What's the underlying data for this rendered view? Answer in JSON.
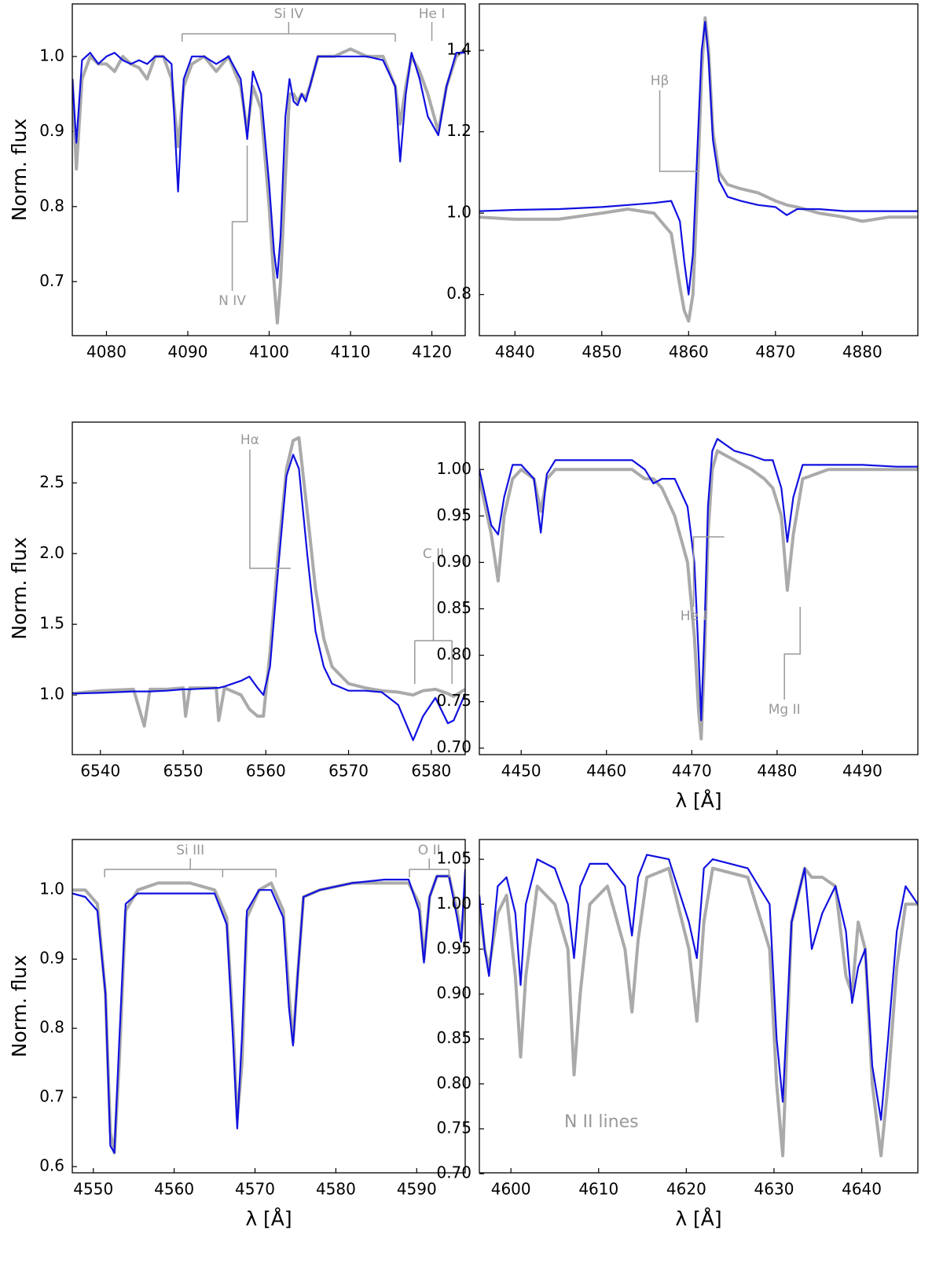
{
  "chart_data": [
    {
      "type": "line",
      "ylabel": "Norm. flux",
      "xlim": [
        4075.8,
        4124.1
      ],
      "xticks": [
        4080,
        4090,
        4100,
        4110,
        4120
      ],
      "ylim": [
        0.628,
        1.07
      ],
      "yticks": [
        0.7,
        0.8,
        0.9,
        {
          "value": 1,
          "label": "1.0"
        }
      ],
      "x": [
        4075.8,
        4076.3,
        4077,
        4078,
        4079,
        4080,
        4081,
        4082,
        4083,
        4084,
        4085,
        4086,
        4087,
        4088,
        4088.8,
        4089.5,
        4090.5,
        4092,
        4093.5,
        4095,
        4096.5,
        4097.3,
        4098,
        4099,
        4100,
        4100.6,
        4101,
        4101.4,
        4102,
        4102.5,
        4103,
        4103.5,
        4104,
        4104.5,
        4105,
        4106,
        4108,
        4110,
        4112,
        4114,
        4115.5,
        4116.1,
        4116.8,
        4117.5,
        4118.5,
        4119.5,
        4120.8,
        4121.8,
        4123,
        4124.1
      ],
      "series": [
        {
          "color": "#aaaaaa",
          "values": [
            0.97,
            0.85,
            0.97,
            1.0,
            0.99,
            0.99,
            0.98,
            1.0,
            0.99,
            0.985,
            0.97,
            1.0,
            1.0,
            0.97,
            0.88,
            0.96,
            0.99,
            1.0,
            0.98,
            1.0,
            0.96,
            0.9,
            0.96,
            0.93,
            0.8,
            0.7,
            0.645,
            0.7,
            0.84,
            0.95,
            0.95,
            0.94,
            0.95,
            0.945,
            0.96,
            1.0,
            1.0,
            1.01,
            1.0,
            1.0,
            0.96,
            0.91,
            0.96,
            1.0,
            0.98,
            0.95,
            0.9,
            0.96,
            1.0,
            1.01
          ]
        },
        {
          "color": "#1010e0",
          "values": [
            0.97,
            0.885,
            0.995,
            1.005,
            0.99,
            1.0,
            1.005,
            0.995,
            0.99,
            0.995,
            0.99,
            1.0,
            1.0,
            0.99,
            0.82,
            0.97,
            1.0,
            1.0,
            0.99,
            1.0,
            0.97,
            0.89,
            0.98,
            0.95,
            0.83,
            0.74,
            0.705,
            0.76,
            0.92,
            0.97,
            0.94,
            0.935,
            0.95,
            0.94,
            0.96,
            1.0,
            1.0,
            1.0,
            1.0,
            0.995,
            0.96,
            0.86,
            0.95,
            1.005,
            0.97,
            0.92,
            0.895,
            0.96,
            1.005,
            1.005
          ]
        }
      ],
      "annotations": [
        {
          "text": "Si IV",
          "lines": [
            4089.3,
            4115.5
          ]
        },
        {
          "text": "He I",
          "lines": [
            4120
          ]
        },
        {
          "text": "N IV",
          "lines": [
            4097.3
          ]
        }
      ]
    },
    {
      "type": "line",
      "xlim": [
        4835.9,
        4886.4
      ],
      "xticks": [
        4840,
        4850,
        4860,
        4870,
        4880
      ],
      "ylim": [
        0.699,
        1.514
      ],
      "yticks": [
        0.8,
        {
          "value": 1,
          "label": "1.0"
        },
        1.2,
        1.4
      ],
      "x": [
        4835.9,
        4840,
        4845,
        4850,
        4853,
        4856,
        4858,
        4859,
        4859.5,
        4860,
        4860.5,
        4861,
        4861.5,
        4861.9,
        4862.3,
        4862.8,
        4863.5,
        4864.5,
        4866,
        4868,
        4870,
        4871.3,
        4872.5,
        4875,
        4878,
        4880,
        4883,
        4886.4
      ],
      "series": [
        {
          "color": "#aaaaaa",
          "values": [
            0.99,
            0.985,
            0.985,
            1.0,
            1.01,
            1.0,
            0.95,
            0.82,
            0.76,
            0.735,
            0.8,
            1.05,
            1.35,
            1.48,
            1.4,
            1.2,
            1.1,
            1.07,
            1.06,
            1.05,
            1.03,
            1.02,
            1.015,
            1.0,
            0.99,
            0.98,
            0.99,
            0.99
          ]
        },
        {
          "color": "#1010e0",
          "values": [
            1.005,
            1.008,
            1.01,
            1.015,
            1.02,
            1.025,
            1.03,
            0.98,
            0.88,
            0.8,
            0.9,
            1.15,
            1.4,
            1.47,
            1.38,
            1.18,
            1.08,
            1.04,
            1.03,
            1.02,
            1.015,
            0.995,
            1.01,
            1.01,
            1.005,
            1.005,
            1.005,
            1.005
          ]
        }
      ],
      "annotations": [
        {
          "text": "Hβ",
          "lines": [
            4861.2
          ]
        }
      ]
    },
    {
      "type": "line",
      "ylabel": "Norm. flux",
      "xlim": [
        6536.6,
        6584.1
      ],
      "xticks": [
        6540,
        6550,
        6560,
        6570,
        6580
      ],
      "ylim": [
        0.578,
        2.93
      ],
      "yticks": [
        {
          "value": 1,
          "label": "1.0"
        },
        1.5,
        {
          "value": 2,
          "label": "2.0"
        },
        2.5
      ],
      "x": [
        6536.6,
        6540,
        6544,
        6545.3,
        6546,
        6548,
        6550,
        6550.3,
        6550.8,
        6554,
        6554.3,
        6555,
        6557,
        6558,
        6559,
        6559.7,
        6560.5,
        6561.5,
        6562.5,
        6563.3,
        6564,
        6565,
        6566,
        6567,
        6568,
        6570,
        6572,
        6574,
        6576,
        6577.8,
        6579,
        6580.5,
        6582,
        6582.7,
        6584.1
      ],
      "series": [
        {
          "color": "#aaaaaa",
          "values": [
            1.01,
            1.03,
            1.04,
            0.78,
            1.04,
            1.04,
            1.05,
            0.85,
            1.05,
            1.05,
            0.82,
            1.05,
            1.0,
            0.9,
            0.85,
            0.85,
            1.3,
            2.0,
            2.6,
            2.8,
            2.82,
            2.3,
            1.75,
            1.4,
            1.2,
            1.08,
            1.05,
            1.03,
            1.02,
            1.0,
            1.03,
            1.04,
            1.01,
            0.99,
            1.04
          ]
        },
        {
          "color": "#1010e0",
          "values": [
            1.01,
            1.015,
            1.025,
            1.025,
            1.025,
            1.03,
            1.04,
            1.04,
            1.04,
            1.05,
            1.05,
            1.06,
            1.1,
            1.13,
            1.05,
            1.0,
            1.2,
            1.9,
            2.55,
            2.7,
            2.6,
            2.0,
            1.45,
            1.2,
            1.08,
            1.03,
            1.03,
            1.02,
            0.93,
            0.68,
            0.85,
            0.98,
            0.8,
            0.82,
            1.01
          ]
        }
      ],
      "annotations": [
        {
          "text": "Hα",
          "lines": [
            6563
          ]
        },
        {
          "text": "C II",
          "lines": [
            6578,
            6582.5
          ]
        }
      ]
    },
    {
      "type": "line",
      "xlabel": "λ [Å]",
      "xlim": [
        4445.1,
        4496.5
      ],
      "xticks": [
        4450,
        4460,
        4470,
        4480,
        4490
      ],
      "ylim": [
        0.693,
        1.051
      ],
      "yticks": [
        {
          "value": 0.7,
          "label": "0.70"
        },
        0.75,
        {
          "value": 0.8,
          "label": "0.80"
        },
        0.85,
        {
          "value": 0.9,
          "label": "0.90"
        },
        0.95,
        {
          "value": 1,
          "label": "1.00"
        }
      ],
      "x": [
        4445.1,
        4446.5,
        4447.3,
        4448,
        4449,
        4450,
        4451.5,
        4452.3,
        4453,
        4454,
        4456,
        4460,
        4463,
        4464.5,
        4465.5,
        4466.5,
        4468,
        4469.5,
        4470.3,
        4470.8,
        4471.1,
        4471.5,
        4471.9,
        4472.4,
        4473,
        4475,
        4477,
        4478.5,
        4479.5,
        4480.5,
        4481.2,
        4481.9,
        4483,
        4486,
        4490,
        4494,
        4496.5
      ],
      "series": [
        {
          "color": "#aaaaaa",
          "values": [
            0.99,
            0.93,
            0.88,
            0.95,
            0.99,
            1.0,
            0.99,
            0.955,
            0.99,
            1.0,
            1.0,
            1.0,
            1.0,
            0.99,
            0.99,
            0.98,
            0.95,
            0.9,
            0.82,
            0.74,
            0.71,
            0.8,
            0.93,
            1.0,
            1.02,
            1.01,
            1.0,
            0.99,
            0.98,
            0.95,
            0.87,
            0.93,
            0.99,
            1.0,
            1.0,
            1.0,
            1.0
          ]
        },
        {
          "color": "#1010e0",
          "values": [
            1.0,
            0.94,
            0.93,
            0.97,
            1.005,
            1.005,
            0.99,
            0.932,
            0.995,
            1.01,
            1.01,
            1.01,
            1.01,
            1.0,
            0.985,
            0.99,
            0.99,
            0.96,
            0.9,
            0.8,
            0.73,
            0.83,
            0.96,
            1.02,
            1.033,
            1.02,
            1.015,
            1.01,
            1.01,
            0.98,
            0.922,
            0.97,
            1.005,
            1.005,
            1.005,
            1.003,
            1.003
          ]
        }
      ],
      "annotations": [
        {
          "text": "He I",
          "lines": [
            4473.8
          ]
        },
        {
          "text": "Mg II",
          "lines": [
            4482.7
          ]
        }
      ]
    },
    {
      "type": "line",
      "ylabel": "Norm. flux",
      "xlabel": "λ [Å]",
      "xlim": [
        4547.4,
        4596.0
      ],
      "xticks": [
        4550,
        4560,
        4570,
        4580,
        4590
      ],
      "ylim": [
        0.591,
        1.073
      ],
      "yticks": [
        0.6,
        0.7,
        0.8,
        0.9,
        {
          "value": 1,
          "label": "1.0"
        }
      ],
      "x": [
        4547.4,
        4549,
        4550.5,
        4551.5,
        4552.1,
        4552.6,
        4553.2,
        4554,
        4555.5,
        4558,
        4562,
        4565,
        4566.5,
        4567.3,
        4567.8,
        4568.4,
        4569,
        4570.5,
        4572,
        4573.5,
        4574.2,
        4574.7,
        4575.3,
        4576,
        4578,
        4582,
        4586,
        4589,
        4590.3,
        4590.9,
        4591.6,
        4592.5,
        4594,
        4595,
        4595.5,
        4596.0
      ],
      "series": [
        {
          "color": "#aaaaaa",
          "values": [
            1.0,
            1.0,
            0.98,
            0.85,
            0.65,
            0.62,
            0.75,
            0.97,
            1.0,
            1.01,
            1.01,
            1.0,
            0.96,
            0.8,
            0.67,
            0.75,
            0.96,
            1.0,
            1.01,
            0.97,
            0.85,
            0.78,
            0.88,
            0.99,
            1.0,
            1.01,
            1.01,
            1.01,
            0.98,
            0.9,
            0.99,
            1.02,
            1.02,
            0.97,
            0.93,
            1.0
          ]
        },
        {
          "color": "#1010e0",
          "values": [
            0.995,
            0.99,
            0.97,
            0.85,
            0.63,
            0.62,
            0.78,
            0.98,
            0.995,
            0.995,
            0.995,
            0.995,
            0.95,
            0.78,
            0.655,
            0.79,
            0.97,
            1.0,
            1.0,
            0.96,
            0.83,
            0.775,
            0.88,
            0.99,
            1.0,
            1.01,
            1.015,
            1.015,
            0.97,
            0.895,
            0.99,
            1.02,
            1.02,
            0.96,
            0.925,
            1.03
          ]
        }
      ],
      "annotations": [
        {
          "text": "Si III",
          "lines": [
            4551.4,
            4566,
            4572.6
          ]
        },
        {
          "text": "O II",
          "lines": [
            4589.1,
            4594
          ]
        }
      ]
    },
    {
      "type": "line",
      "xlabel": "λ [Å]",
      "xlim": [
        4596.4,
        4646.4
      ],
      "xticks": [
        4600,
        4610,
        4620,
        4630,
        4640
      ],
      "ylim": [
        0.701,
        1.072
      ],
      "yticks": [
        {
          "value": 0.7,
          "label": "0.70"
        },
        0.75,
        {
          "value": 0.8,
          "label": "0.80"
        },
        0.85,
        {
          "value": 0.9,
          "label": "0.90"
        },
        0.95,
        {
          "value": 1,
          "label": "1.00"
        },
        1.05
      ],
      "x": [
        4596.4,
        4597,
        4597.5,
        4598.5,
        4599.5,
        4600.5,
        4601.1,
        4601.7,
        4603,
        4605,
        4606.5,
        4607.2,
        4607.9,
        4609,
        4611,
        4613,
        4613.8,
        4614.5,
        4615.5,
        4618,
        4620.3,
        4621.2,
        4622,
        4623,
        4627,
        4629.5,
        4630.3,
        4631,
        4632,
        4633.5,
        4634.3,
        4635.5,
        4637,
        4638.2,
        4638.9,
        4639.6,
        4640.4,
        4641.2,
        4642.2,
        4643,
        4644,
        4645,
        4646.4
      ],
      "series": [
        {
          "color": "#aaaaaa",
          "values": [
            1.0,
            0.95,
            0.93,
            0.99,
            1.01,
            0.92,
            0.83,
            0.92,
            1.02,
            1.0,
            0.95,
            0.81,
            0.9,
            1.0,
            1.02,
            0.95,
            0.88,
            0.96,
            1.03,
            1.04,
            0.95,
            0.87,
            0.98,
            1.04,
            1.03,
            0.95,
            0.8,
            0.72,
            0.98,
            1.04,
            1.03,
            1.03,
            1.02,
            0.92,
            0.9,
            0.98,
            0.95,
            0.8,
            0.72,
            0.8,
            0.93,
            1.0,
            1.0
          ]
        },
        {
          "color": "#1010e0",
          "values": [
            1.01,
            0.95,
            0.92,
            1.02,
            1.03,
            0.99,
            0.91,
            1.0,
            1.05,
            1.04,
            1.0,
            0.94,
            1.02,
            1.045,
            1.045,
            1.02,
            0.965,
            1.03,
            1.055,
            1.05,
            0.98,
            0.94,
            1.04,
            1.05,
            1.04,
            1.0,
            0.85,
            0.78,
            0.98,
            1.04,
            0.95,
            0.99,
            1.02,
            0.97,
            0.89,
            0.93,
            0.95,
            0.82,
            0.76,
            0.85,
            0.97,
            1.02,
            1.0
          ]
        }
      ],
      "annotations": [
        {
          "text": "N II lines"
        }
      ]
    }
  ]
}
